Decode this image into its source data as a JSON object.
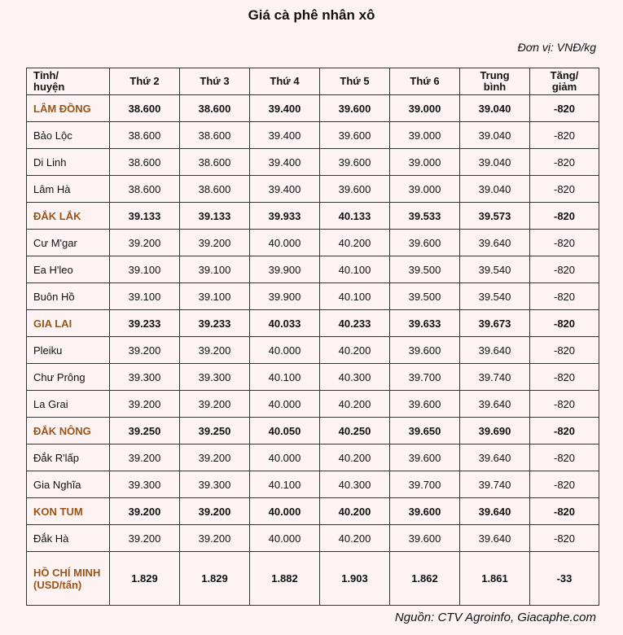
{
  "header": {
    "title": "Giá cà phê nhân xô",
    "unit": "Đơn vị: VNĐ/kg"
  },
  "table": {
    "columns": [
      "Tỉnh/ huyện",
      "Thứ 2",
      "Thứ 3",
      "Thứ 4",
      "Thứ 5",
      "Thứ 6",
      "Trung bình",
      "Tăng/ giảm"
    ],
    "rows": [
      {
        "label": "LÂM ĐỒNG",
        "bold": true,
        "values": [
          "38.600",
          "38.600",
          "39.400",
          "39.600",
          "39.000",
          "39.040",
          "-820"
        ]
      },
      {
        "label": "Bảo Lộc",
        "values": [
          "38.600",
          "38.600",
          "39.400",
          "39.600",
          "39.000",
          "39.040",
          "-820"
        ]
      },
      {
        "label": "Di Linh",
        "values": [
          "38.600",
          "38.600",
          "39.400",
          "39.600",
          "39.000",
          "39.040",
          "-820"
        ]
      },
      {
        "label": "Lâm Hà",
        "values": [
          "38.600",
          "38.600",
          "39.400",
          "39.600",
          "39.000",
          "39.040",
          "-820"
        ]
      },
      {
        "label": "ĐẮK LẮK",
        "bold": true,
        "values": [
          "39.133",
          "39.133",
          "39.933",
          "40.133",
          "39.533",
          "39.573",
          "-820"
        ]
      },
      {
        "label": "Cư M'gar",
        "values": [
          "39.200",
          "39.200",
          "40.000",
          "40.200",
          "39.600",
          "39.640",
          "-820"
        ]
      },
      {
        "label": "Ea H'leo",
        "values": [
          "39.100",
          "39.100",
          "39.900",
          "40.100",
          "39.500",
          "39.540",
          "-820"
        ]
      },
      {
        "label": "Buôn Hồ",
        "values": [
          "39.100",
          "39.100",
          "39.900",
          "40.100",
          "39.500",
          "39.540",
          "-820"
        ]
      },
      {
        "label": "GIA LAI",
        "bold": true,
        "values": [
          "39.233",
          "39.233",
          "40.033",
          "40.233",
          "39.633",
          "39.673",
          "-820"
        ]
      },
      {
        "label": "Pleiku",
        "values": [
          "39.200",
          "39.200",
          "40.000",
          "40.200",
          "39.600",
          "39.640",
          "-820"
        ]
      },
      {
        "label": "Chư Prông",
        "values": [
          "39.300",
          "39.300",
          "40.100",
          "40.300",
          "39.700",
          "39.740",
          "-820"
        ]
      },
      {
        "label": "La Grai",
        "values": [
          "39.200",
          "39.200",
          "40.000",
          "40.200",
          "39.600",
          "39.640",
          "-820"
        ]
      },
      {
        "label": "ĐẮK NÔNG",
        "bold": true,
        "values": [
          "39.250",
          "39.250",
          "40.050",
          "40.250",
          "39.650",
          "39.690",
          "-820"
        ]
      },
      {
        "label": "Đắk R'lấp",
        "values": [
          "39.200",
          "39.200",
          "40.000",
          "40.200",
          "39.600",
          "39.640",
          "-820"
        ]
      },
      {
        "label": "Gia Nghĩa",
        "values": [
          "39.300",
          "39.300",
          "40.100",
          "40.300",
          "39.700",
          "39.740",
          "-820"
        ]
      },
      {
        "label": "KON TUM",
        "bold": true,
        "values": [
          "39.200",
          "39.200",
          "40.000",
          "40.200",
          "39.600",
          "39.640",
          "-820"
        ]
      },
      {
        "label": "Đắk Hà",
        "values": [
          "39.200",
          "39.200",
          "40.000",
          "40.200",
          "39.600",
          "39.640",
          "-820"
        ]
      },
      {
        "label": "HỒ CHÍ MINH",
        "unit_label": "(USD/tấn)",
        "bold": true,
        "values": [
          "1.829",
          "1.829",
          "1.882",
          "1.903",
          "1.862",
          "1.861",
          "-33"
        ]
      }
    ]
  },
  "source": "Nguồn: CTV Agroinfo, Giacaphe.com"
}
